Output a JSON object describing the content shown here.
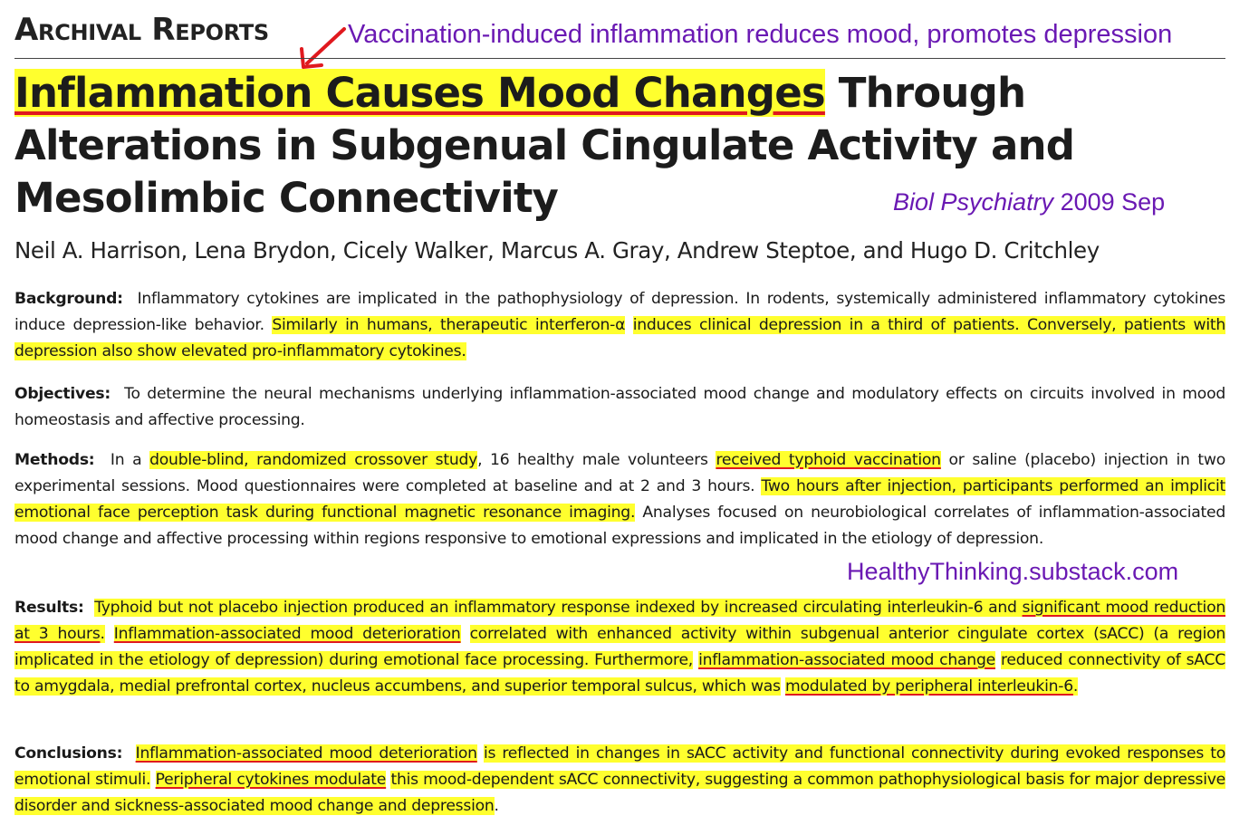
{
  "header": {
    "section_label": "Archival Reports",
    "annotation": "Vaccination-induced inflammation reduces mood, promotes depression"
  },
  "title": {
    "highlighted": "Inflammation Causes Mood Changes",
    "rest": " Through Alterations in Subgenual Cingulate Activity and Mesolimbic Connectivity"
  },
  "journal": {
    "name": "Biol Psychiatry",
    "date": " 2009 Sep"
  },
  "authors": "Neil A. Harrison, Lena Brydon, Cicely Walker, Marcus A. Gray, Andrew Steptoe, and Hugo D. Critchley",
  "background": {
    "label": "Background:",
    "t1": "Inflammatory cytokines are implicated in the pathophysiology of depression. In rodents, systemically administered inflammatory cytokines induce depression-like behavior.",
    "h1": "Similarly in humans, therapeutic interferon-α",
    "h2": "induces clinical depression in a third of patients. Conversely, patients with depression also show elevated pro-inflammatory cytokines."
  },
  "objectives": {
    "label": "Objectives:",
    "t1": "To determine the neural mechanisms underlying inflammation-associated mood change and modulatory effects on circuits involved in mood homeostasis and affective processing."
  },
  "methods": {
    "label": "Methods:",
    "t1": "In a",
    "h1": "double-blind, randomized crossover study",
    "t2": ", 16 healthy male volunteers",
    "h2": "received typhoid vaccination",
    "t3": "or saline (placebo) injection in two experimental sessions. Mood questionnaires were completed at baseline and at 2 and 3 hours.",
    "h3": "Two hours after injection, participants performed an implicit emotional face perception task during functional magnetic resonance imaging.",
    "t4": "Analyses focused on neurobiological correlates of inflammation-associated mood change and affective processing within regions responsive to emotional expressions and implicated in the etiology of depression."
  },
  "results": {
    "label": "Results:",
    "h1": "Typhoid but not placebo injection produced an inflammatory response indexed by increased circulating interleukin-6 and",
    "u1": "significant mood reduction at 3 hours",
    "h2": ".",
    "u2": "Inflammation-associated mood deterioration",
    "h3": "correlated with enhanced activity within subgenual anterior cingulate cortex (sACC) (a region implicated in the etiology of depression) during emotional face processing. Furthermore,",
    "u3": "inflammation-associated mood change",
    "h4": "reduced connectivity of sACC to amygdala, medial prefrontal cortex, nucleus accumbens, and superior temporal sulcus, which was",
    "u4": "modulated by peripheral interleukin-6",
    "h5": "."
  },
  "conclusions": {
    "label": "Conclusions:",
    "u1": "Inflammation-associated mood deterioration",
    "h1": "is reflected in changes in sACC activity and functional connectivity during evoked responses to emotional stimuli.",
    "u2": "Peripheral cytokines modulate",
    "h2": "this mood-dependent sACC connectivity, suggesting a common pathophysiological basis for major depressive disorder and sickness-associated mood change and depression",
    "t1": "."
  },
  "watermark": "HealthyThinking.substack.com",
  "colors": {
    "highlight": "#ffff2e",
    "underline": "#e0191e",
    "annotation": "#6a19b3"
  }
}
